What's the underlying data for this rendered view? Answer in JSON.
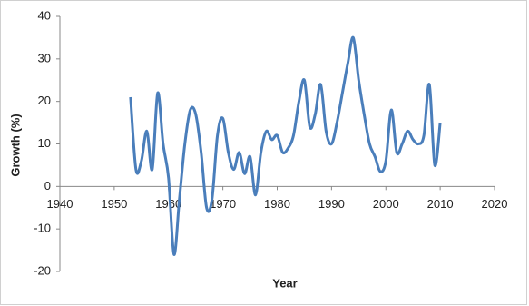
{
  "chart_data": {
    "type": "line",
    "x_label": "Year",
    "y_label": "Growth (%)",
    "x": [
      1953,
      1954,
      1955,
      1956,
      1957,
      1958,
      1959,
      1960,
      1961,
      1962,
      1963,
      1964,
      1965,
      1966,
      1967,
      1968,
      1969,
      1970,
      1971,
      1972,
      1973,
      1974,
      1975,
      1976,
      1977,
      1978,
      1979,
      1980,
      1981,
      1982,
      1983,
      1984,
      1985,
      1986,
      1987,
      1988,
      1989,
      1990,
      1991,
      1992,
      1993,
      1994,
      1995,
      1996,
      1997,
      1998,
      1999,
      2000,
      2001,
      2002,
      2003,
      2004,
      2005,
      2006,
      2007,
      2008,
      2009,
      2010
    ],
    "values": [
      21,
      4,
      6,
      13,
      4,
      22,
      10,
      2,
      -16,
      -3,
      10,
      18,
      17,
      8,
      -5,
      -3,
      12,
      16,
      8,
      4,
      8,
      3,
      7,
      -2,
      8,
      13,
      11,
      12,
      8,
      9,
      12,
      20,
      25,
      14,
      17,
      24,
      13,
      10,
      15,
      22,
      29,
      35,
      25,
      17,
      10,
      7,
      3.5,
      6,
      18,
      8,
      10,
      13,
      11,
      10,
      12,
      24,
      5,
      15
    ],
    "color": "#4a7ebb",
    "xlim": [
      1940,
      2020
    ],
    "xticks": [
      1940,
      1950,
      1960,
      1970,
      1980,
      1990,
      2000,
      2010,
      2020
    ],
    "ylim": [
      -20,
      40
    ],
    "yticks": [
      -20,
      -10,
      0,
      10,
      20,
      30,
      40
    ],
    "smooth": true
  }
}
